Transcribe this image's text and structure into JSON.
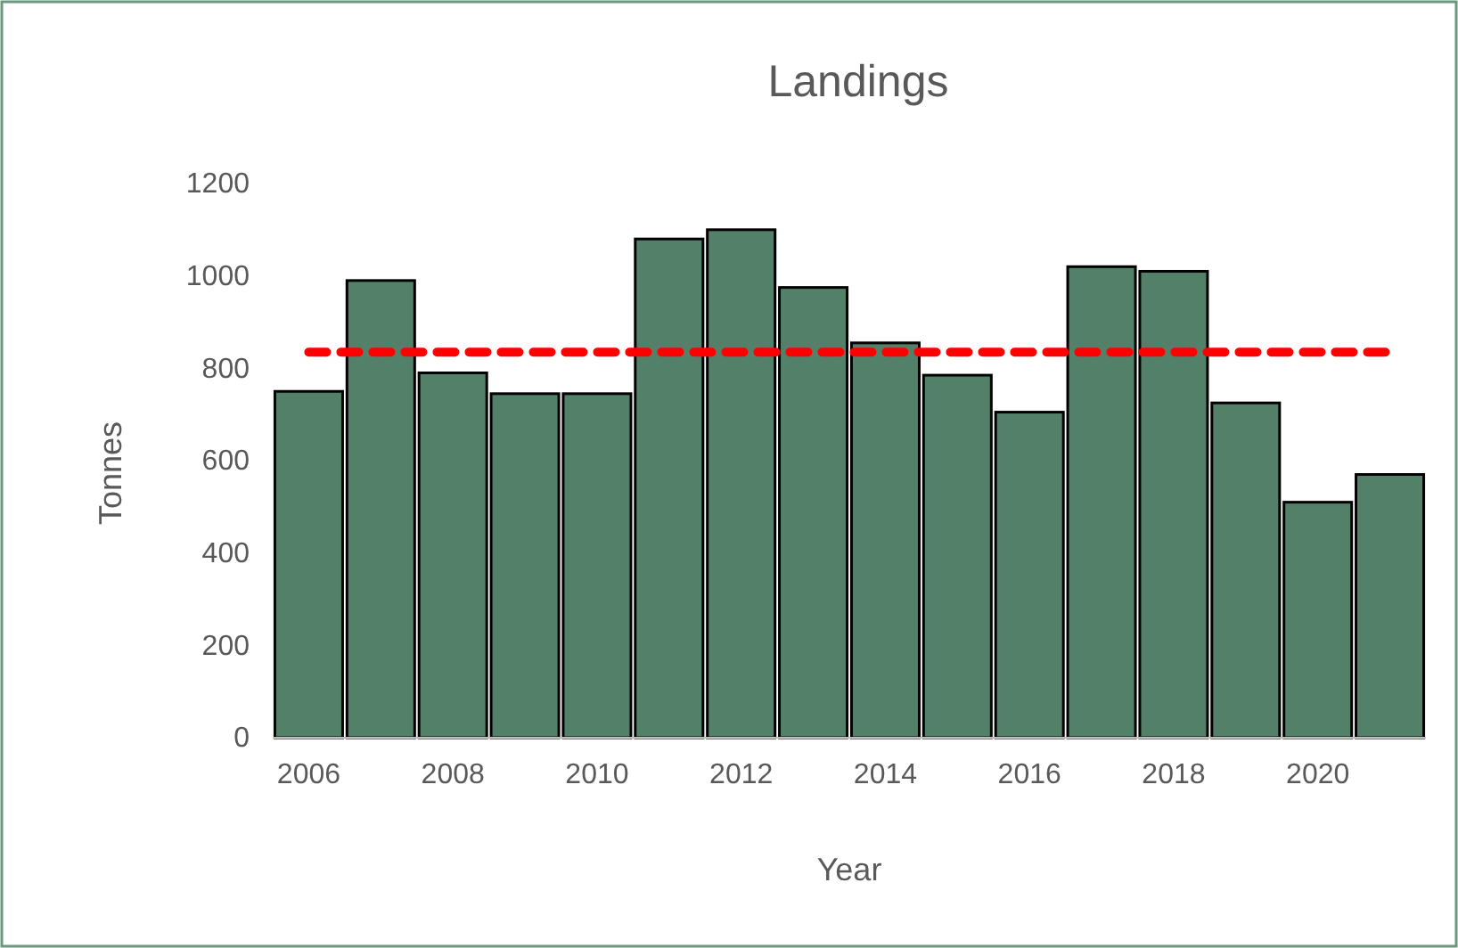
{
  "chart_data": {
    "type": "bar",
    "title": "Landings",
    "xlabel": "Year",
    "ylabel": "Tonnes",
    "categories": [
      "2006",
      null,
      "2008",
      null,
      "2010",
      null,
      "2012",
      null,
      "2014",
      null,
      "2016",
      null,
      "2018",
      null,
      "2020",
      null
    ],
    "values": [
      750,
      990,
      790,
      745,
      745,
      1080,
      1100,
      975,
      855,
      785,
      705,
      1020,
      1010,
      725,
      510,
      570
    ],
    "color": "#538068",
    "ylim": [
      0,
      1200
    ],
    "yticks": [
      0,
      200,
      400,
      600,
      800,
      1000,
      1200
    ],
    "grid": false,
    "ref_lines": [
      {
        "axis": "y",
        "value": 835,
        "color": "#ff0000",
        "line_style": "dashed"
      }
    ]
  }
}
